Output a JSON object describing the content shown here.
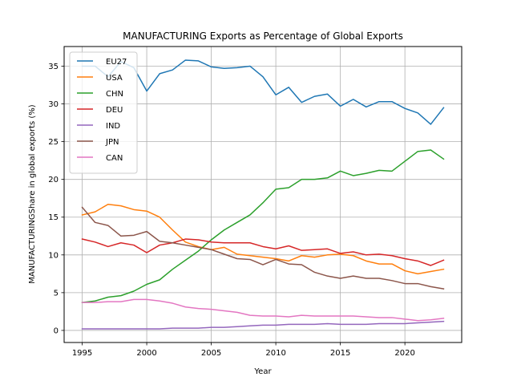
{
  "chart_data": {
    "type": "line",
    "title": "MANUFACTURING Exports as Percentage of Global Exports",
    "xlabel": "Year",
    "ylabel": "MANUFACTURINGShare in global exports (%)",
    "xlim": [
      1993.6,
      2024.4
    ],
    "ylim": [
      -1.6,
      37.6
    ],
    "xticks": [
      1995,
      2000,
      2005,
      2010,
      2015,
      2020
    ],
    "yticks": [
      0,
      5,
      10,
      15,
      20,
      25,
      30,
      35
    ],
    "grid": true,
    "legend_position": "top-left",
    "x": [
      1995,
      1996,
      1997,
      1998,
      1999,
      2000,
      2001,
      2002,
      2003,
      2004,
      2005,
      2006,
      2007,
      2008,
      2009,
      2010,
      2011,
      2012,
      2013,
      2014,
      2015,
      2016,
      2017,
      2018,
      2019,
      2020,
      2021,
      2022,
      2023
    ],
    "series": [
      {
        "name": "EU27",
        "color": "#1f77b4",
        "values": [
          35.0,
          35.0,
          33.6,
          35.6,
          34.8,
          31.7,
          34.0,
          34.5,
          35.8,
          35.7,
          34.9,
          34.7,
          34.8,
          35.0,
          33.6,
          31.2,
          32.2,
          30.2,
          31.0,
          31.3,
          29.7,
          30.6,
          29.6,
          30.3,
          30.3,
          29.4,
          28.8,
          27.3,
          29.5
        ]
      },
      {
        "name": "USA",
        "color": "#ff7f0e",
        "values": [
          15.3,
          15.7,
          16.7,
          16.5,
          16.0,
          15.8,
          15.0,
          13.3,
          11.7,
          11.1,
          10.7,
          11.0,
          10.1,
          9.9,
          9.7,
          9.5,
          9.2,
          9.9,
          9.7,
          10.0,
          10.1,
          9.9,
          9.2,
          8.8,
          8.8,
          7.9,
          7.5,
          7.8,
          8.1
        ]
      },
      {
        "name": "CHN",
        "color": "#2ca02c",
        "values": [
          3.7,
          3.9,
          4.4,
          4.6,
          5.2,
          6.1,
          6.7,
          8.1,
          9.3,
          10.5,
          12.0,
          13.3,
          14.3,
          15.3,
          16.9,
          18.7,
          18.9,
          20.0,
          20.0,
          20.2,
          21.1,
          20.5,
          20.8,
          21.2,
          21.1,
          22.4,
          23.7,
          23.9,
          22.7
        ]
      },
      {
        "name": "DEU",
        "color": "#d62728",
        "values": [
          12.1,
          11.7,
          11.1,
          11.6,
          11.3,
          10.3,
          11.3,
          11.6,
          12.1,
          12.0,
          11.7,
          11.6,
          11.6,
          11.6,
          11.1,
          10.8,
          11.2,
          10.6,
          10.7,
          10.8,
          10.2,
          10.4,
          10.0,
          10.1,
          9.9,
          9.5,
          9.2,
          8.6,
          9.3
        ]
      },
      {
        "name": "IND",
        "color": "#9467bd",
        "values": [
          0.2,
          0.2,
          0.2,
          0.2,
          0.2,
          0.2,
          0.2,
          0.3,
          0.3,
          0.3,
          0.4,
          0.4,
          0.5,
          0.6,
          0.7,
          0.7,
          0.8,
          0.8,
          0.8,
          0.9,
          0.8,
          0.8,
          0.8,
          0.9,
          0.9,
          0.9,
          1.0,
          1.1,
          1.2
        ]
      },
      {
        "name": "JPN",
        "color": "#8c564b",
        "values": [
          16.3,
          14.3,
          13.9,
          12.5,
          12.6,
          13.1,
          11.8,
          11.6,
          11.3,
          11.0,
          10.7,
          10.1,
          9.5,
          9.4,
          8.7,
          9.4,
          8.8,
          8.7,
          7.7,
          7.2,
          6.9,
          7.2,
          6.9,
          6.9,
          6.6,
          6.2,
          6.2,
          5.8,
          5.5
        ]
      },
      {
        "name": "CAN",
        "color": "#e377c2",
        "values": [
          3.7,
          3.7,
          3.8,
          3.8,
          4.1,
          4.1,
          3.9,
          3.6,
          3.1,
          2.9,
          2.8,
          2.6,
          2.4,
          2.0,
          1.9,
          1.9,
          1.8,
          2.0,
          1.9,
          1.9,
          1.9,
          1.9,
          1.8,
          1.7,
          1.7,
          1.5,
          1.3,
          1.4,
          1.6
        ]
      }
    ]
  }
}
